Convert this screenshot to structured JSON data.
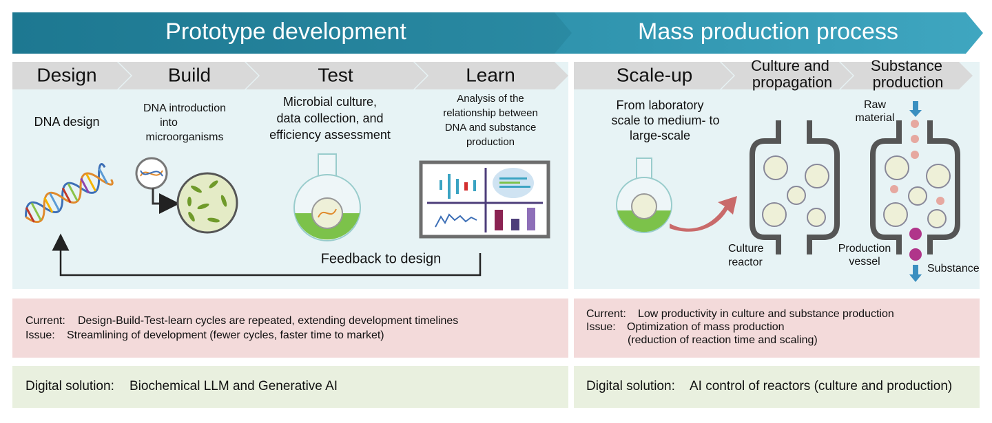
{
  "phases": [
    {
      "title": "Prototype development"
    },
    {
      "title": "Mass production process"
    }
  ],
  "steps": [
    {
      "label_lines": [
        "Design"
      ],
      "description_lines": [
        "DNA design"
      ]
    },
    {
      "label_lines": [
        "Build"
      ],
      "description_lines": [
        "DNA introduction",
        "into",
        "microorganisms"
      ]
    },
    {
      "label_lines": [
        "Test"
      ],
      "description_lines": [
        "Microbial culture,",
        "data collection, and",
        "efficiency assessment"
      ]
    },
    {
      "label_lines": [
        "Learn"
      ],
      "description_lines": [
        "Analysis of the",
        "relationship between",
        "DNA and substance",
        "production"
      ]
    },
    {
      "label_lines": [
        "Scale-up"
      ],
      "description_lines": [
        "From laboratory",
        "scale to medium- to",
        "large-scale"
      ]
    },
    {
      "label_lines": [
        "Culture and",
        "propagation"
      ],
      "description_lines": []
    },
    {
      "label_lines": [
        "Substance",
        "production"
      ],
      "description_lines": []
    }
  ],
  "feedback": "Feedback to design",
  "figure_labels": {
    "culture_reactor": [
      "Culture",
      "reactor"
    ],
    "production_vessel": [
      "Production",
      "vessel"
    ],
    "raw_material": [
      "Raw",
      "material"
    ],
    "substance": "Substance"
  },
  "challenges": [
    {
      "current_label": "Current:",
      "current": "Design-Build-Test-learn cycles are repeated, extending development timelines",
      "issue_label": "Issue:",
      "issue_lines": [
        "Streamlining of development (fewer cycles, faster time to market)"
      ]
    },
    {
      "current_label": "Current:",
      "current": "Low productivity in culture and substance production",
      "issue_label": "Issue:",
      "issue_lines": [
        "Optimization of mass production",
        "(reduction of reaction time and scaling)"
      ]
    }
  ],
  "solutions": [
    {
      "label": "Digital solution:",
      "text": "Biochemical LLM and Generative AI"
    },
    {
      "label": "Digital solution:",
      "text": "AI control of reactors (culture and production)"
    }
  ]
}
